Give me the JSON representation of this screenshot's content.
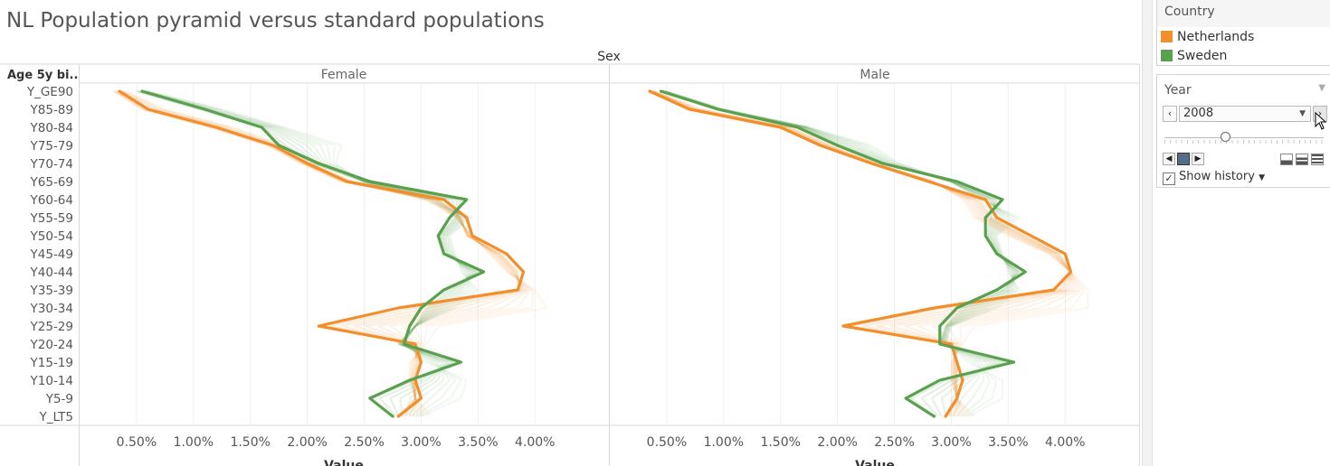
{
  "title": "NL Population pyramid versus standard populations",
  "legend": {
    "title": "Country",
    "items": [
      {
        "label": "Netherlands",
        "color": "#f28e2b"
      },
      {
        "label": "Sweden",
        "color": "#59a14f"
      }
    ]
  },
  "year_filter": {
    "title": "Year",
    "value": "2008",
    "show_history_label": "Show history"
  },
  "chart_data": {
    "type": "line",
    "column_header": "Sex",
    "row_header": "Age 5y bi..",
    "xlabel": "Value",
    "panels": [
      "Female",
      "Male"
    ],
    "categories": [
      "Y_GE90",
      "Y85-89",
      "Y80-84",
      "Y75-79",
      "Y70-74",
      "Y65-69",
      "Y60-64",
      "Y55-59",
      "Y50-54",
      "Y45-49",
      "Y40-44",
      "Y35-39",
      "Y30-34",
      "Y25-29",
      "Y20-24",
      "Y15-19",
      "Y10-14",
      "Y5-9",
      "Y_LT5"
    ],
    "xticks": [
      "0.50%",
      "1.00%",
      "1.50%",
      "2.00%",
      "2.50%",
      "3.00%",
      "3.50%",
      "4.00%"
    ],
    "xlim": [
      0.0,
      4.65
    ],
    "series": [
      {
        "panel": "Female",
        "name": "Netherlands",
        "values": [
          0.35,
          0.6,
          1.2,
          1.7,
          2.0,
          2.35,
          3.2,
          3.4,
          3.45,
          3.75,
          3.9,
          3.85,
          2.8,
          2.1,
          2.95,
          3.0,
          2.95,
          3.0,
          2.8
        ]
      },
      {
        "panel": "Female",
        "name": "Sweden",
        "values": [
          0.55,
          1.1,
          1.6,
          1.75,
          2.1,
          2.55,
          3.4,
          3.25,
          3.15,
          3.2,
          3.55,
          3.2,
          3.0,
          2.9,
          2.85,
          3.35,
          2.9,
          2.55,
          2.75
        ]
      },
      {
        "panel": "Male",
        "name": "Netherlands",
        "values": [
          0.35,
          0.7,
          1.5,
          1.85,
          2.3,
          2.8,
          3.3,
          3.4,
          3.7,
          4.0,
          4.05,
          3.9,
          2.85,
          2.05,
          3.0,
          3.05,
          3.1,
          3.05,
          2.95
        ]
      },
      {
        "panel": "Male",
        "name": "Sweden",
        "values": [
          0.45,
          0.95,
          1.65,
          2.0,
          2.4,
          3.05,
          3.45,
          3.3,
          3.3,
          3.4,
          3.65,
          3.4,
          3.05,
          2.9,
          2.9,
          3.55,
          2.9,
          2.6,
          2.85
        ]
      }
    ],
    "history": {
      "Female": {
        "Netherlands": {
          "from": [
            0.4,
            0.75,
            1.35,
            1.8,
            2.05,
            2.4,
            3.05,
            3.3,
            3.45,
            3.6,
            3.75,
            4.0,
            4.1,
            3.15,
            3.05,
            2.9,
            2.9,
            2.95,
            3.1
          ],
          "to": [
            0.3,
            0.55,
            1.15,
            1.65,
            1.95,
            2.3,
            3.15,
            3.35,
            3.4,
            3.7,
            3.85,
            3.85,
            2.95,
            2.2,
            2.9,
            3.0,
            2.95,
            2.95,
            2.8
          ]
        },
        "Sweden": {
          "from": [
            0.6,
            1.25,
            1.8,
            2.3,
            2.25,
            2.5,
            3.0,
            3.45,
            3.25,
            3.3,
            3.35,
            3.5,
            3.3,
            2.95,
            2.85,
            3.05,
            3.4,
            3.35,
            3.0
          ],
          "to": [
            0.5,
            1.05,
            1.6,
            1.75,
            2.05,
            2.5,
            3.35,
            3.3,
            3.15,
            3.2,
            3.5,
            3.25,
            3.05,
            2.95,
            2.8,
            3.3,
            2.95,
            2.55,
            2.75
          ]
        }
      },
      "Male": {
        "Netherlands": {
          "from": [
            0.4,
            0.8,
            1.6,
            1.95,
            2.35,
            2.85,
            3.1,
            3.2,
            3.5,
            3.85,
            4.05,
            4.2,
            4.2,
            3.2,
            3.1,
            3.0,
            3.0,
            3.05,
            3.2
          ],
          "to": [
            0.35,
            0.7,
            1.5,
            1.85,
            2.3,
            2.8,
            3.25,
            3.35,
            3.65,
            3.95,
            4.05,
            3.95,
            2.95,
            2.1,
            3.0,
            3.05,
            3.05,
            3.05,
            2.95
          ]
        },
        "Sweden": {
          "from": [
            0.5,
            1.0,
            1.75,
            2.3,
            2.55,
            3.0,
            3.25,
            3.6,
            3.4,
            3.45,
            3.5,
            3.6,
            3.4,
            3.0,
            2.95,
            3.15,
            3.45,
            3.45,
            3.15
          ],
          "to": [
            0.45,
            0.95,
            1.7,
            2.0,
            2.4,
            3.0,
            3.4,
            3.35,
            3.3,
            3.4,
            3.6,
            3.45,
            3.1,
            2.95,
            2.9,
            3.5,
            2.95,
            2.65,
            2.85
          ]
        }
      }
    },
    "grid": true,
    "legend_position": "right"
  }
}
